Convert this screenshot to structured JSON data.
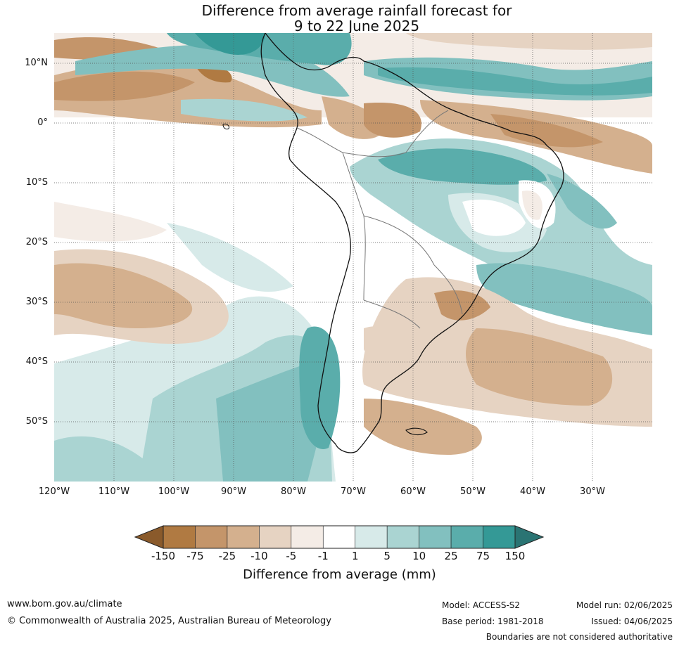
{
  "title_line1": "Difference from average rainfall forecast for",
  "title_line2": "9 to 22 June 2025",
  "lat_labels": [
    "10°N",
    "0°",
    "10°S",
    "20°S",
    "30°S",
    "40°S",
    "50°S"
  ],
  "lon_labels": [
    "120°W",
    "110°W",
    "100°W",
    "90°W",
    "80°W",
    "70°W",
    "60°W",
    "50°W",
    "40°W",
    "30°W"
  ],
  "colorbar": {
    "ticks": [
      "-150",
      "-75",
      "-25",
      "-10",
      "-5",
      "-1",
      "1",
      "5",
      "10",
      "25",
      "75",
      "150"
    ],
    "colors": [
      "#8a5a2b",
      "#b07a42",
      "#c4956a",
      "#d4b08e",
      "#e6d3c2",
      "#f4ece6",
      "#ffffff",
      "#d7eae9",
      "#aad4d2",
      "#82c0bf",
      "#5aadab",
      "#349996",
      "#2a7473"
    ],
    "label": "Difference from average (mm)"
  },
  "footer": {
    "url": "www.bom.gov.au/climate",
    "copyright": "© Commonwealth of Australia 2025, Australian Bureau of Meteorology",
    "model": "Model: ACCESS-S2",
    "base_period": "Base period: 1981-2018",
    "model_run": "Model run: 02/06/2025",
    "issued": "Issued: 04/06/2025",
    "disclaimer": "Boundaries are not considered authoritative"
  }
}
